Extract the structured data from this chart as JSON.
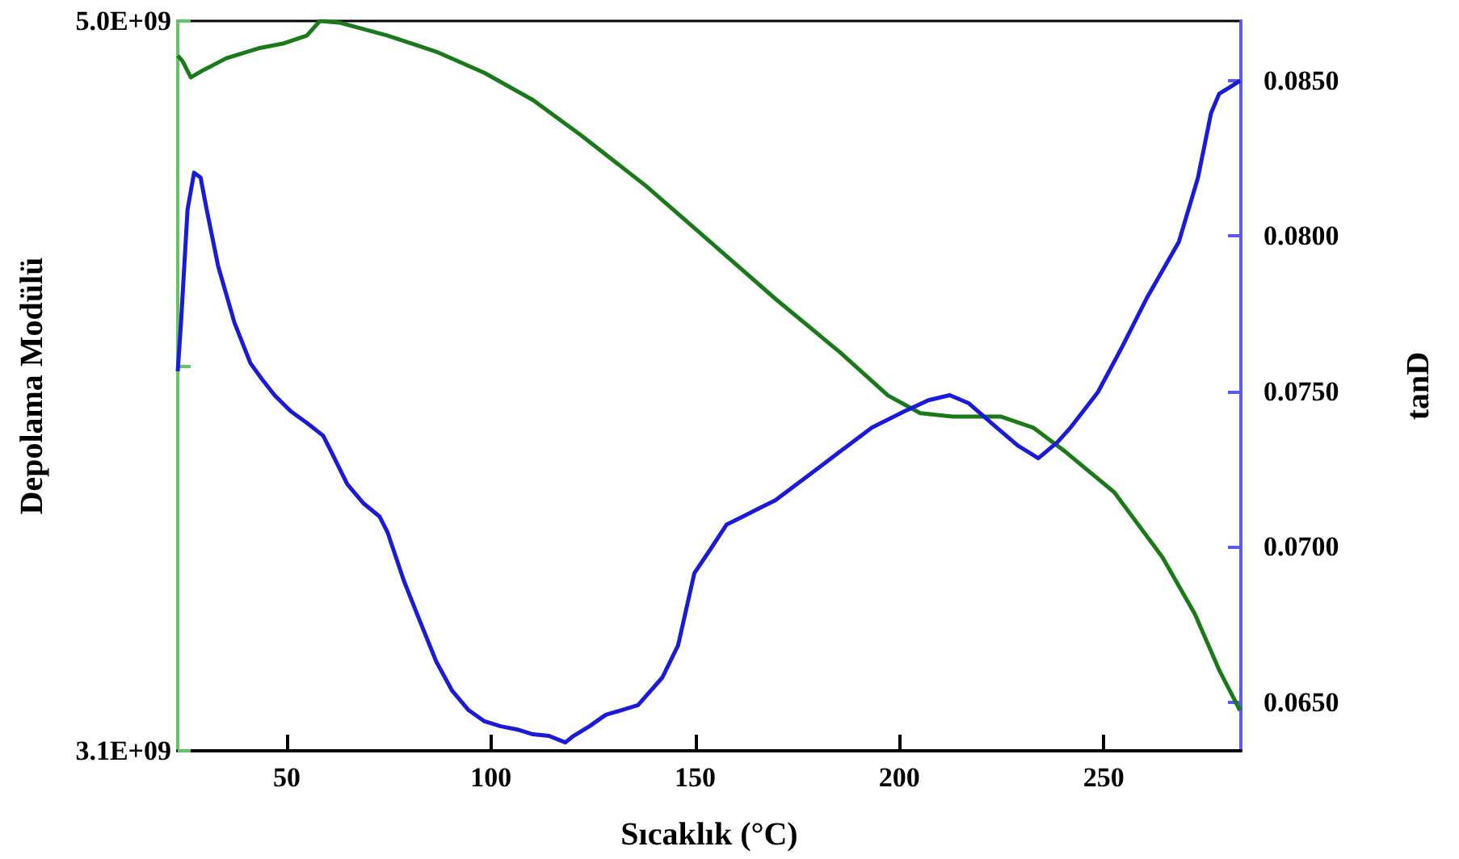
{
  "chart_data": {
    "type": "line",
    "xlabel": "Sıcaklık (°C)",
    "ylabel": "Depolama Modülü",
    "y2label": "tanD",
    "grid": false,
    "xlim": [
      23.3,
      283.6
    ],
    "xticks": [
      50,
      100,
      150,
      200,
      250
    ],
    "ylim": [
      3100000000,
      5000000000
    ],
    "yticks": [
      {
        "value": 3100000000,
        "label": "3.1E+09"
      },
      {
        "value": 4100000000,
        "label": null
      },
      {
        "value": 5000000000,
        "label": "5.0E+09"
      }
    ],
    "y2lim": [
      0.06344,
      0.08692
    ],
    "y2ticks": [
      {
        "value": 0.065,
        "label": "0.0650"
      },
      {
        "value": 0.07,
        "label": "0.0700"
      },
      {
        "value": 0.075,
        "label": "0.0750"
      },
      {
        "value": 0.08,
        "label": "0.0800"
      },
      {
        "value": 0.085,
        "label": "0.0850"
      }
    ],
    "series": [
      {
        "color": "#1a7a1a",
        "x": [
          23.3,
          24.5,
          26.5,
          29.2,
          35.2,
          43.1,
          49.0,
          54.9,
          58.1,
          62.8,
          74.7,
          86.6,
          98.4,
          110.3,
          122.1,
          137.9,
          153.8,
          169.6,
          185.4,
          197.2,
          205.1,
          213.0,
          224.9,
          232.8,
          240.7,
          252.6,
          264.4,
          272.3,
          278.3,
          283.4
        ],
        "values": [
          4910000000,
          4895000000,
          4853000000,
          4870000000,
          4903000000,
          4929000000,
          4941000000,
          4962000000,
          5000000000,
          4996000000,
          4962000000,
          4920000000,
          4865000000,
          4794000000,
          4702000000,
          4571000000,
          4424000000,
          4277000000,
          4138000000,
          4025000000,
          3979000000,
          3970000000,
          3970000000,
          3941000000,
          3878000000,
          3773000000,
          3604000000,
          3457000000,
          3310000000,
          3205000000
        ]
      },
      {
        "color": "#1a1adb",
        "axis": "y2",
        "x": [
          23.3,
          24.1,
          25.7,
          27.3,
          28.9,
          30.4,
          33.2,
          37.2,
          41.1,
          43.9,
          47.0,
          51.0,
          54.9,
          58.9,
          60.9,
          64.8,
          68.8,
          72.7,
          74.7,
          78.7,
          82.6,
          86.6,
          90.5,
          94.5,
          98.4,
          102.4,
          106.3,
          110.3,
          114.2,
          118.2,
          120.2,
          124.1,
          128.1,
          132.0,
          136.0,
          141.9,
          145.8,
          149.8,
          153.8,
          157.7,
          161.7,
          165.6,
          169.6,
          177.5,
          185.4,
          193.3,
          201.2,
          207.1,
          212.3,
          217.0,
          222.9,
          228.9,
          234.0,
          238.7,
          241.9,
          248.6,
          254.5,
          260.5,
          268.4,
          273.1,
          276.3,
          278.3,
          280.3,
          283.4
        ],
        "values": [
          0.07565,
          0.07721,
          0.08085,
          0.08204,
          0.08188,
          0.08085,
          0.07903,
          0.07721,
          0.07591,
          0.0754,
          0.07488,
          0.07436,
          0.07399,
          0.07358,
          0.07306,
          0.07202,
          0.0714,
          0.07098,
          0.07046,
          0.0689,
          0.06761,
          0.06631,
          0.06537,
          0.06475,
          0.06439,
          0.06423,
          0.06413,
          0.06397,
          0.06392,
          0.06371,
          0.06392,
          0.06423,
          0.0646,
          0.06475,
          0.06491,
          0.06579,
          0.06683,
          0.06916,
          0.06994,
          0.07072,
          0.07098,
          0.07124,
          0.0715,
          0.07228,
          0.07306,
          0.07384,
          0.07436,
          0.07472,
          0.07488,
          0.07462,
          0.07394,
          0.07327,
          0.07285,
          0.07337,
          0.07384,
          0.07498,
          0.07643,
          0.07799,
          0.07981,
          0.08188,
          0.08396,
          0.08458,
          0.08474,
          0.085
        ]
      }
    ]
  }
}
